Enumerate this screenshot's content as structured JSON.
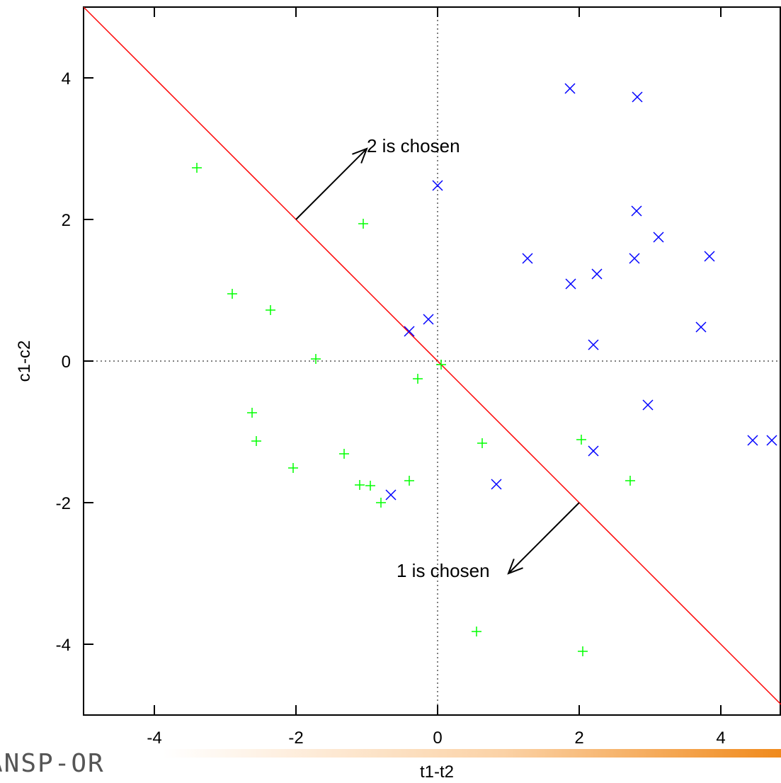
{
  "logo": {
    "text": "ANSP-OR"
  },
  "chart_data": {
    "type": "scatter",
    "title": "",
    "xlabel": "t1-t2",
    "ylabel": "c1-c2",
    "xlim": [
      -5,
      4.85
    ],
    "ylim": [
      -5,
      5
    ],
    "xticks": [
      -4,
      -2,
      0,
      2,
      4
    ],
    "yticks": [
      -4,
      -2,
      0,
      2,
      4
    ],
    "grid": false,
    "zero_lines": true,
    "legend": "none",
    "series": [
      {
        "marker": "plus",
        "color": "#00ff00",
        "points": [
          [
            -3.4,
            2.73
          ],
          [
            -1.05,
            1.94
          ],
          [
            -2.9,
            0.95
          ],
          [
            -2.36,
            0.72
          ],
          [
            -1.72,
            0.03
          ],
          [
            0.05,
            -0.05
          ],
          [
            -0.28,
            -0.25
          ],
          [
            -2.62,
            -0.73
          ],
          [
            -2.56,
            -1.13
          ],
          [
            -2.04,
            -1.51
          ],
          [
            -1.32,
            -1.31
          ],
          [
            -1.1,
            -1.75
          ],
          [
            -0.95,
            -1.76
          ],
          [
            -0.8,
            -2.0
          ],
          [
            -0.4,
            -1.69
          ],
          [
            0.63,
            -1.16
          ],
          [
            2.03,
            -1.11
          ],
          [
            2.72,
            -1.69
          ],
          [
            0.55,
            -3.82
          ],
          [
            2.05,
            -4.1
          ]
        ]
      },
      {
        "marker": "x",
        "color": "#0000ff",
        "points": [
          [
            1.87,
            3.85
          ],
          [
            2.82,
            3.73
          ],
          [
            0.0,
            2.48
          ],
          [
            2.81,
            2.12
          ],
          [
            3.12,
            1.75
          ],
          [
            1.27,
            1.45
          ],
          [
            2.78,
            1.45
          ],
          [
            3.84,
            1.48
          ],
          [
            1.88,
            1.09
          ],
          [
            2.25,
            1.23
          ],
          [
            -0.4,
            0.42
          ],
          [
            -0.13,
            0.59
          ],
          [
            3.72,
            0.48
          ],
          [
            2.2,
            0.23
          ],
          [
            2.97,
            -0.62
          ],
          [
            2.2,
            -1.27
          ],
          [
            4.45,
            -1.12
          ],
          [
            4.72,
            -1.12
          ],
          [
            0.83,
            -1.74
          ],
          [
            -0.66,
            -1.89
          ]
        ]
      }
    ],
    "decision_line": {
      "x": [
        -5,
        4.85
      ],
      "y": [
        5,
        -4.85
      ],
      "color": "#ff0000"
    },
    "annotations": [
      {
        "text": "2 is chosen",
        "arrow_from": [
          -2,
          2
        ],
        "arrow_to": [
          -1,
          3
        ],
        "text_at": [
          -1.0,
          2.95
        ]
      },
      {
        "text": "1 is chosen",
        "arrow_from": [
          2,
          -2
        ],
        "arrow_to": [
          1,
          -3
        ],
        "text_at": [
          -0.58,
          -3.05
        ]
      }
    ]
  }
}
